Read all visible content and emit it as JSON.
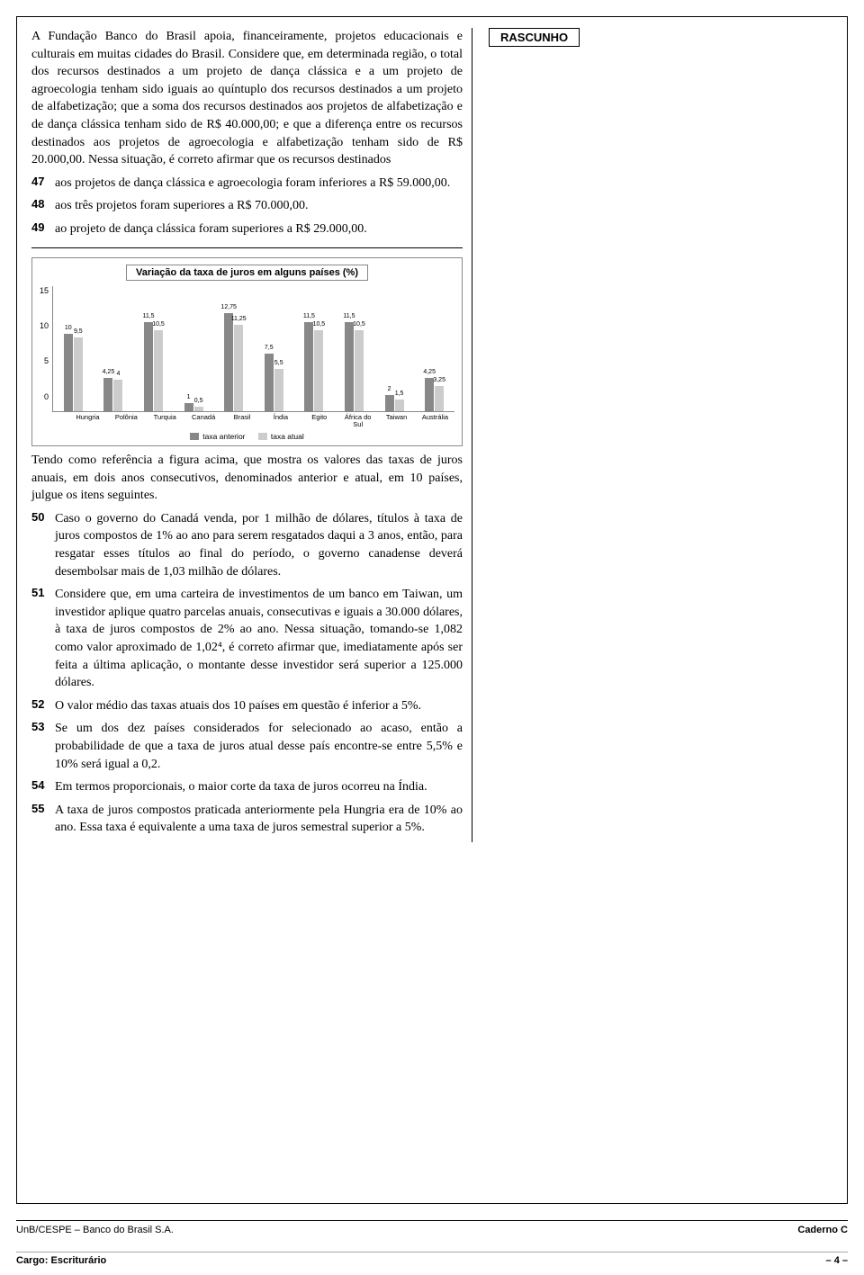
{
  "rascunho_label": "RASCUNHO",
  "intro1": "A Fundação Banco do Brasil apoia, financeiramente, projetos educacionais e culturais em muitas cidades do Brasil. Considere que, em determinada região, o total dos recursos destinados a um projeto de dança clássica e a um projeto de agroecologia tenham sido iguais ao quíntuplo dos recursos destinados a um projeto de alfabetização; que a soma dos recursos destinados aos projetos de alfabetização e de dança clássica tenham sido de R$ 40.000,00; e que a diferença entre os recursos destinados aos projetos de agroecologia e alfabetização tenham sido de R$ 20.000,00. Nessa situação, é correto afirmar que os recursos destinados",
  "items_a": [
    {
      "n": "47",
      "t": "aos projetos de dança clássica e agroecologia foram inferiores a R$ 59.000,00."
    },
    {
      "n": "48",
      "t": "aos três projetos foram superiores a R$ 70.000,00."
    },
    {
      "n": "49",
      "t": "ao projeto de dança clássica foram superiores a R$ 29.000,00."
    }
  ],
  "chart": {
    "title": "Variação da taxa de juros em alguns países (%)",
    "ymax": 15,
    "yticks": [
      "15",
      "10",
      "5",
      "0"
    ],
    "categories": [
      "Hungria",
      "Polônia",
      "Turquia",
      "Canadá",
      "Brasil",
      "Índia",
      "Egito",
      "África do Sul",
      "Taiwan",
      "Austrália"
    ],
    "prev": [
      10,
      4.25,
      11.5,
      1,
      12.75,
      7.5,
      11.5,
      11.5,
      2,
      4.25
    ],
    "curr": [
      9.5,
      4,
      10.5,
      0.5,
      11.25,
      5.5,
      10.5,
      10.5,
      1.5,
      3.25
    ],
    "prev_labels": [
      "10",
      "4,25",
      "11,5",
      "1",
      "12,75",
      "7,5",
      "11,5",
      "11,5",
      "2",
      "4,25"
    ],
    "curr_labels": [
      "9,5",
      "4",
      "10,5",
      "0,5",
      "11,25",
      "5,5",
      "10,5",
      "10,5",
      "1,5",
      "3,25"
    ],
    "legend_prev": "taxa anterior",
    "legend_curr": "taxa atual",
    "color_prev": "#888888",
    "color_curr": "#cccccc",
    "axis_color": "#888888"
  },
  "intro2": "Tendo como referência a figura acima, que mostra os valores das taxas de juros anuais, em dois anos consecutivos, denominados anterior e atual, em 10 países, julgue os itens seguintes.",
  "items_b": [
    {
      "n": "50",
      "t": "Caso o governo do Canadá venda, por 1 milhão de dólares, títulos à taxa de juros compostos de 1% ao ano para serem resgatados daqui a 3 anos, então, para resgatar esses títulos ao final do período, o governo canadense deverá desembolsar mais de 1,03 milhão de dólares."
    },
    {
      "n": "51",
      "t": "Considere que, em uma carteira de investimentos de um banco em Taiwan, um investidor aplique quatro parcelas anuais, consecutivas e iguais a 30.000 dólares, à taxa de juros compostos de 2% ao ano. Nessa situação, tomando-se 1,082 como valor aproximado de 1,02⁴, é correto afirmar que, imediatamente após ser feita a última aplicação, o montante desse investidor será superior a 125.000 dólares."
    },
    {
      "n": "52",
      "t": "O valor médio das taxas atuais dos 10 países em questão é inferior a 5%."
    },
    {
      "n": "53",
      "t": "Se um dos dez países considerados for selecionado ao acaso, então a probabilidade de que a taxa de juros atual desse país encontre-se entre 5,5% e 10% será igual a 0,2."
    },
    {
      "n": "54",
      "t": "Em termos proporcionais, o maior corte da taxa de juros ocorreu na Índia."
    },
    {
      "n": "55",
      "t": "A taxa de juros compostos praticada anteriormente pela Hungria era de 10% ao ano. Essa taxa é equivalente a uma taxa de juros semestral superior a 5%."
    }
  ],
  "footer": {
    "left_top": "UnB/CESPE – Banco do Brasil S.A.",
    "right_top": "Caderno C",
    "left_bottom": "Cargo: Escriturário",
    "right_bottom": "– 4 –"
  }
}
